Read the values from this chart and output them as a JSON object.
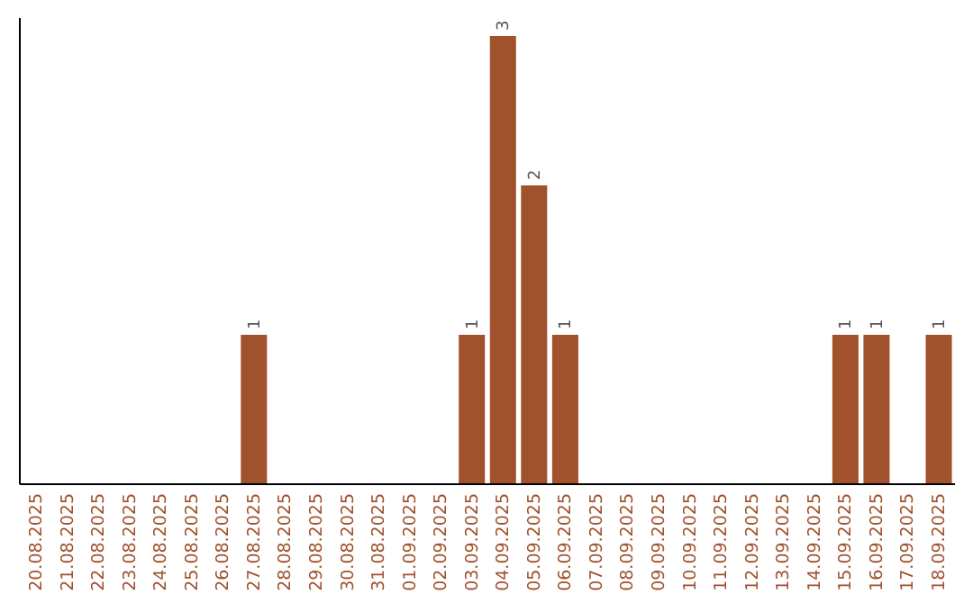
{
  "chart_data": {
    "type": "bar",
    "categories": [
      "20.08.2025",
      "21.08.2025",
      "22.08.2025",
      "23.08.2025",
      "24.08.2025",
      "25.08.2025",
      "26.08.2025",
      "27.08.2025",
      "28.08.2025",
      "29.08.2025",
      "30.08.2025",
      "31.08.2025",
      "01.09.2025",
      "02.09.2025",
      "03.09.2025",
      "04.09.2025",
      "05.09.2025",
      "06.09.2025",
      "07.09.2025",
      "08.09.2025",
      "09.09.2025",
      "10.09.2025",
      "11.09.2025",
      "12.09.2025",
      "13.09.2025",
      "14.09.2025",
      "15.09.2025",
      "16.09.2025",
      "17.09.2025",
      "18.09.2025"
    ],
    "values": [
      0,
      0,
      0,
      0,
      0,
      0,
      0,
      1,
      0,
      0,
      0,
      0,
      0,
      0,
      1,
      3,
      2,
      1,
      0,
      0,
      0,
      0,
      0,
      0,
      0,
      0,
      1,
      1,
      0,
      1
    ],
    "value_labels": [
      null,
      null,
      null,
      null,
      null,
      null,
      null,
      "1",
      null,
      null,
      null,
      null,
      null,
      null,
      "1",
      "3",
      "2",
      "1",
      null,
      null,
      null,
      null,
      null,
      null,
      null,
      null,
      "1",
      "1",
      null,
      "1"
    ],
    "color": "#a0522d",
    "tick_labels": "x"
  }
}
